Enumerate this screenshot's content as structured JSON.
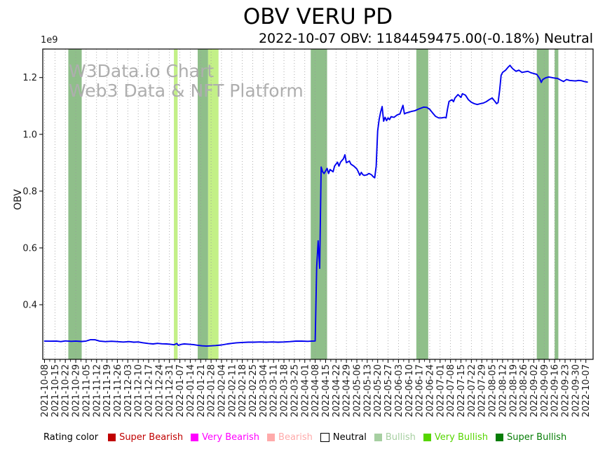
{
  "title": "OBV VERU PD",
  "subtitle": "2022-10-07 OBV: 1184459475.00(-0.18%) Neutral",
  "offset_label": "1e9",
  "watermark": {
    "line1": "W3Data.io Chart",
    "line2": "Web3 Data & NFT Platform"
  },
  "legend": {
    "title": "Rating color",
    "items": [
      {
        "label": "Super Bearish",
        "square": "#c00000",
        "text": "#c00000",
        "border": false
      },
      {
        "label": "Very Bearish",
        "square": "#ff00ff",
        "text": "#ff00ff",
        "border": false
      },
      {
        "label": "Bearish",
        "square": "#ffaaaa",
        "text": "#ffaaaa",
        "border": false
      },
      {
        "label": "Neutral",
        "square": "#ffffff",
        "text": "#000000",
        "border": true
      },
      {
        "label": "Bullish",
        "square": "#a6cfa1",
        "text": "#a6cfa1",
        "border": false
      },
      {
        "label": "Very Bullish",
        "square": "#56d500",
        "text": "#56d500",
        "border": false
      },
      {
        "label": "Super Bullish",
        "square": "#067d06",
        "text": "#067d06",
        "border": false
      }
    ]
  },
  "chart_data": {
    "type": "line",
    "title": "OBV VERU PD",
    "xlabel": "",
    "ylabel": "OBV",
    "y_offset_text": "1e9",
    "y_ticks": [
      0.4,
      0.6,
      0.8,
      1.0,
      1.2
    ],
    "ylim": [
      0.208,
      1.3
    ],
    "grid": "vertical-dotted",
    "line_color": "#0000f0",
    "x_labels": [
      "2021-10-08",
      "2021-10-15",
      "2021-10-22",
      "2021-10-29",
      "2021-11-05",
      "2021-11-12",
      "2021-11-19",
      "2021-11-26",
      "2021-12-03",
      "2021-12-10",
      "2021-12-17",
      "2021-12-24",
      "2021-12-31",
      "2022-01-07",
      "2022-01-14",
      "2022-01-21",
      "2022-01-28",
      "2022-02-04",
      "2022-02-11",
      "2022-02-18",
      "2022-02-25",
      "2022-03-04",
      "2022-03-11",
      "2022-03-18",
      "2022-03-25",
      "2022-04-01",
      "2022-04-08",
      "2022-04-15",
      "2022-04-22",
      "2022-04-29",
      "2022-05-06",
      "2022-05-13",
      "2022-05-20",
      "2022-05-27",
      "2022-06-03",
      "2022-06-10",
      "2022-06-17",
      "2022-06-24",
      "2022-07-01",
      "2022-07-08",
      "2022-07-15",
      "2022-07-22",
      "2022-07-29",
      "2022-08-05",
      "2022-08-12",
      "2022-08-19",
      "2022-08-26",
      "2022-09-02",
      "2022-09-09",
      "2022-09-16",
      "2022-09-23",
      "2022-09-30",
      "2022-10-07"
    ],
    "band_colors": {
      "Bullish": "#8fbf8a",
      "Very Bullish": "#c3f087"
    },
    "bands": [
      {
        "start_day": 16,
        "end_day": 25,
        "rating": "Bullish"
      },
      {
        "start_day": 87,
        "end_day": 89.5,
        "rating": "Very Bullish"
      },
      {
        "start_day": 103,
        "end_day": 110,
        "rating": "Bullish"
      },
      {
        "start_day": 110,
        "end_day": 117,
        "rating": "Very Bullish"
      },
      {
        "start_day": 179,
        "end_day": 190,
        "rating": "Bullish"
      },
      {
        "start_day": 250,
        "end_day": 258,
        "rating": "Bullish"
      },
      {
        "start_day": 331,
        "end_day": 339,
        "rating": "Bullish"
      },
      {
        "start_day": 343,
        "end_day": 345.5,
        "rating": "Bullish"
      }
    ],
    "series": [
      {
        "name": "OBV (1e9)",
        "points": [
          [
            0,
            0.272
          ],
          [
            4,
            0.2715
          ],
          [
            8,
            0.272
          ],
          [
            11,
            0.27
          ],
          [
            14,
            0.2725
          ],
          [
            18,
            0.271
          ],
          [
            21,
            0.272
          ],
          [
            25,
            0.2705
          ],
          [
            28,
            0.272
          ],
          [
            31,
            0.277
          ],
          [
            34,
            0.2765
          ],
          [
            37,
            0.272
          ],
          [
            41,
            0.27
          ],
          [
            45,
            0.2712
          ],
          [
            49,
            0.27
          ],
          [
            53,
            0.2685
          ],
          [
            57,
            0.27
          ],
          [
            60,
            0.268
          ],
          [
            63,
            0.2688
          ],
          [
            66,
            0.266
          ],
          [
            70,
            0.2635
          ],
          [
            73,
            0.262
          ],
          [
            76,
            0.264
          ],
          [
            79,
            0.2625
          ],
          [
            82,
            0.2618
          ],
          [
            85,
            0.2605
          ],
          [
            87,
            0.259
          ],
          [
            89,
            0.2635
          ],
          [
            90,
            0.257
          ],
          [
            92,
            0.2605
          ],
          [
            94,
            0.262
          ],
          [
            97,
            0.261
          ],
          [
            100,
            0.2598
          ],
          [
            103,
            0.2572
          ],
          [
            106,
            0.2552
          ],
          [
            109,
            0.2542
          ],
          [
            112,
            0.2552
          ],
          [
            115,
            0.2562
          ],
          [
            119,
            0.2582
          ],
          [
            123,
            0.2618
          ],
          [
            126,
            0.2638
          ],
          [
            129,
            0.2658
          ],
          [
            133,
            0.267
          ],
          [
            137,
            0.268
          ],
          [
            141,
            0.268
          ],
          [
            145,
            0.2688
          ],
          [
            149,
            0.268
          ],
          [
            153,
            0.2688
          ],
          [
            157,
            0.268
          ],
          [
            161,
            0.2688
          ],
          [
            165,
            0.27
          ],
          [
            169,
            0.2718
          ],
          [
            173,
            0.2718
          ],
          [
            177,
            0.271
          ],
          [
            180,
            0.272
          ],
          [
            182,
            0.2722
          ],
          [
            183,
            0.532
          ],
          [
            184,
            0.625
          ],
          [
            185,
            0.528
          ],
          [
            186,
            0.885
          ],
          [
            187,
            0.868
          ],
          [
            188,
            0.862
          ],
          [
            190,
            0.88
          ],
          [
            191,
            0.862
          ],
          [
            192,
            0.876
          ],
          [
            194,
            0.868
          ],
          [
            195,
            0.888
          ],
          [
            197,
            0.902
          ],
          [
            198,
            0.888
          ],
          [
            199,
            0.902
          ],
          [
            201,
            0.914
          ],
          [
            202,
            0.928
          ],
          [
            203,
            0.9
          ],
          [
            205,
            0.906
          ],
          [
            206,
            0.895
          ],
          [
            208,
            0.888
          ],
          [
            210,
            0.878
          ],
          [
            211,
            0.868
          ],
          [
            212,
            0.856
          ],
          [
            213,
            0.866
          ],
          [
            214,
            0.858
          ],
          [
            215,
            0.8555
          ],
          [
            216,
            0.8565
          ],
          [
            217,
            0.858
          ],
          [
            218,
            0.862
          ],
          [
            219,
            0.86
          ],
          [
            220,
            0.857
          ],
          [
            221,
            0.851
          ],
          [
            222,
            0.847
          ],
          [
            223,
            0.888
          ],
          [
            224,
            1.012
          ],
          [
            225,
            1.052
          ],
          [
            226,
            1.078
          ],
          [
            227,
            1.098
          ],
          [
            228,
            1.046
          ],
          [
            229,
            1.06
          ],
          [
            230,
            1.048
          ],
          [
            231,
            1.058
          ],
          [
            232,
            1.052
          ],
          [
            233,
            1.062
          ],
          [
            235,
            1.06
          ],
          [
            237,
            1.068
          ],
          [
            239,
            1.072
          ],
          [
            241,
            1.102
          ],
          [
            242,
            1.072
          ],
          [
            243,
            1.075
          ],
          [
            245,
            1.078
          ],
          [
            247,
            1.081
          ],
          [
            249,
            1.083
          ],
          [
            251,
            1.088
          ],
          [
            253,
            1.092
          ],
          [
            255,
            1.096
          ],
          [
            257,
            1.095
          ],
          [
            259,
            1.088
          ],
          [
            261,
            1.075
          ],
          [
            263,
            1.063
          ],
          [
            265,
            1.058
          ],
          [
            267,
            1.058
          ],
          [
            269,
            1.06
          ],
          [
            270,
            1.058
          ],
          [
            271,
            1.09
          ],
          [
            272,
            1.116
          ],
          [
            274,
            1.122
          ],
          [
            275,
            1.115
          ],
          [
            276,
            1.128
          ],
          [
            278,
            1.14
          ],
          [
            280,
            1.13
          ],
          [
            281,
            1.143
          ],
          [
            283,
            1.138
          ],
          [
            285,
            1.122
          ],
          [
            287,
            1.113
          ],
          [
            289,
            1.108
          ],
          [
            291,
            1.105
          ],
          [
            293,
            1.108
          ],
          [
            295,
            1.11
          ],
          [
            297,
            1.115
          ],
          [
            299,
            1.122
          ],
          [
            301,
            1.128
          ],
          [
            303,
            1.115
          ],
          [
            304,
            1.108
          ],
          [
            305,
            1.112
          ],
          [
            306,
            1.155
          ],
          [
            307,
            1.208
          ],
          [
            308,
            1.218
          ],
          [
            310,
            1.226
          ],
          [
            312,
            1.238
          ],
          [
            313,
            1.243
          ],
          [
            314,
            1.236
          ],
          [
            315,
            1.23
          ],
          [
            317,
            1.222
          ],
          [
            319,
            1.226
          ],
          [
            321,
            1.218
          ],
          [
            323,
            1.22
          ],
          [
            325,
            1.222
          ],
          [
            327,
            1.217
          ],
          [
            329,
            1.214
          ],
          [
            331,
            1.211
          ],
          [
            333,
            1.196
          ],
          [
            334,
            1.183
          ],
          [
            335,
            1.193
          ],
          [
            337,
            1.199
          ],
          [
            339,
            1.202
          ],
          [
            341,
            1.2
          ],
          [
            343,
            1.198
          ],
          [
            345,
            1.197
          ],
          [
            347,
            1.191
          ],
          [
            349,
            1.186
          ],
          [
            351,
            1.193
          ],
          [
            353,
            1.19
          ],
          [
            355,
            1.189
          ],
          [
            357,
            1.188
          ],
          [
            359,
            1.19
          ],
          [
            361,
            1.189
          ],
          [
            363,
            1.186
          ],
          [
            365,
            1.184
          ]
        ]
      }
    ]
  }
}
